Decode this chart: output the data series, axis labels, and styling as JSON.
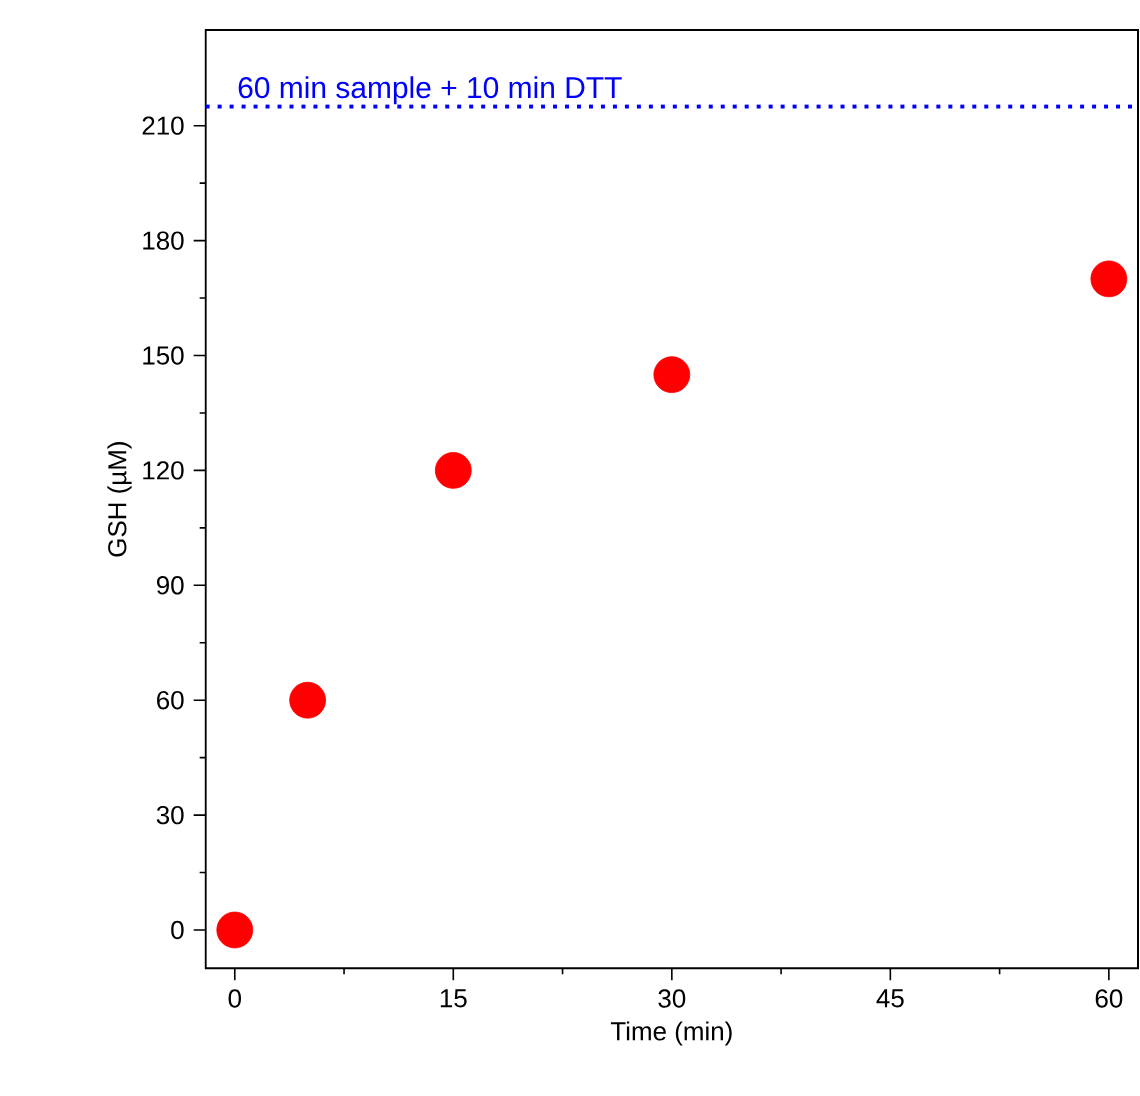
{
  "chart_data": {
    "type": "scatter",
    "xlabel": "Time (min)",
    "ylabel": "GSH (µM)",
    "x": [
      0,
      5,
      15,
      30,
      60
    ],
    "series": [
      {
        "color": "#ff0000",
        "values": [
          0,
          60,
          120,
          145,
          170
        ]
      }
    ],
    "xlim": [
      -2,
      62
    ],
    "ylim": [
      -10,
      235
    ],
    "xticks": [
      0,
      15,
      30,
      45,
      60
    ],
    "yticks": [
      0,
      30,
      60,
      90,
      120,
      150,
      180,
      210
    ],
    "marker": "circle",
    "ref_lines": [
      {
        "axis": "y",
        "value": 215,
        "label": "60 min sample + 10 min DTT",
        "color": "#0000ff",
        "line_style": "dotted"
      }
    ]
  }
}
